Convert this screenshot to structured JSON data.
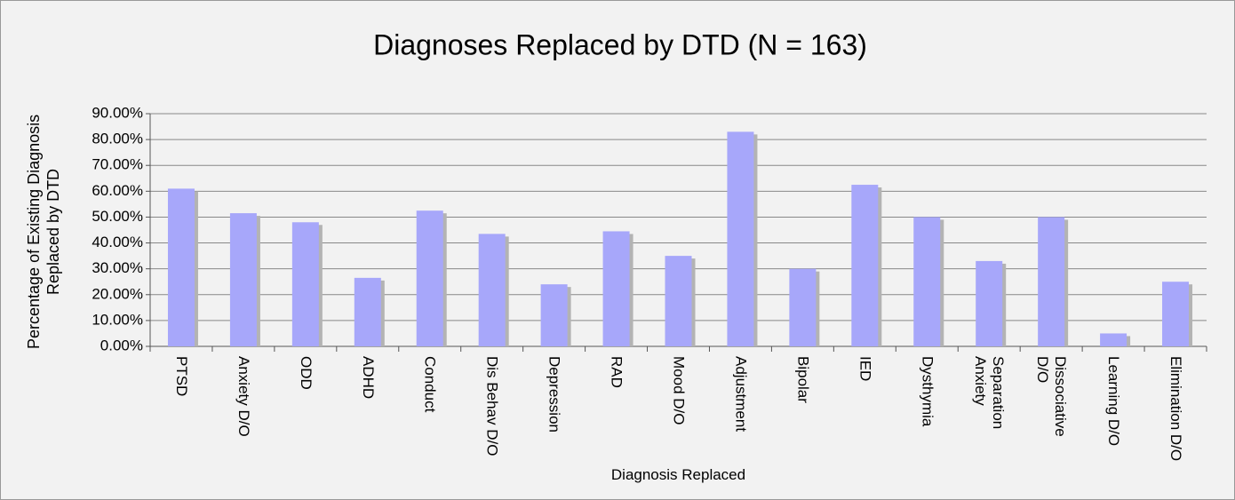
{
  "chart_data": {
    "type": "bar",
    "title": "Diagnoses Replaced by DTD (N = 163)",
    "x_label": "Diagnosis Replaced",
    "y_label": "Percentage of Existing Diagnosis Replaced by DTD",
    "categories": [
      "PTSD",
      "Anxiety D/O",
      "ODD",
      "ADHD",
      "Conduct",
      "Dis Behav D/O",
      "Depression",
      "RAD",
      "Mood D/O",
      "Adjustment",
      "Bipolar",
      "IED",
      "Dysthymia",
      "Separation Anxiety",
      "Dissociative D/O",
      "Learning D/O",
      "Elimination D/O"
    ],
    "values": [
      61,
      51.5,
      48,
      26.5,
      52.5,
      43.5,
      24,
      44.5,
      35,
      83,
      30,
      62.5,
      50,
      33,
      50,
      5,
      25
    ],
    "color": "#a7a7fa",
    "ylim": [
      0,
      90
    ],
    "yticks": [
      {
        "value": 0,
        "label": "0.00%"
      },
      {
        "value": 10,
        "label": "10.00%"
      },
      {
        "value": 20,
        "label": "20.00%"
      },
      {
        "value": 30,
        "label": "30.00%"
      },
      {
        "value": 40,
        "label": "40.00%"
      },
      {
        "value": 50,
        "label": "50.00%"
      },
      {
        "value": 60,
        "label": "60.00%"
      },
      {
        "value": 70,
        "label": "70.00%"
      },
      {
        "value": 80,
        "label": "80.00%"
      },
      {
        "value": 90,
        "label": "90.00%"
      }
    ],
    "grid": true
  }
}
